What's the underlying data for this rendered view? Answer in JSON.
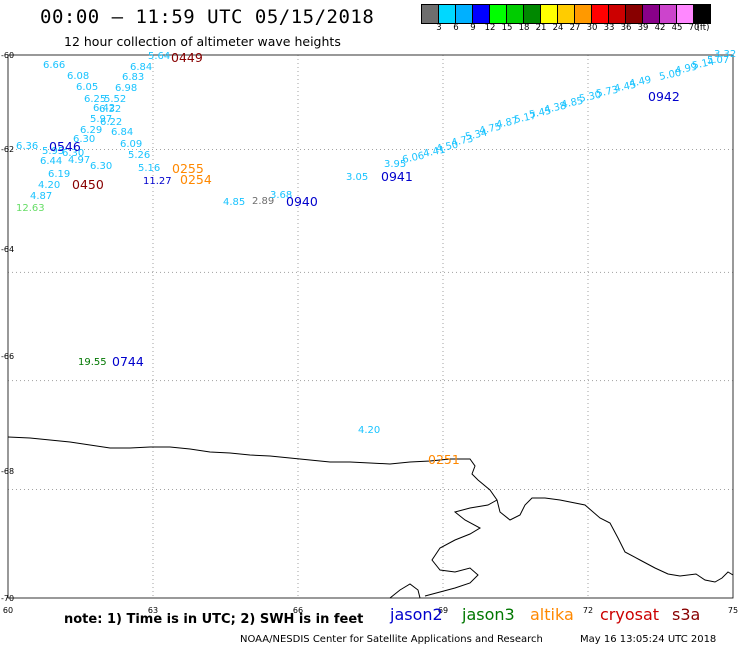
{
  "header": {
    "title": "00:00 – 11:59 UTC 05/15/2018",
    "subtitle": "12 hour collection of altimeter wave heights"
  },
  "colorbar": {
    "colors": [
      "#6e6e6e",
      "#00d8ff",
      "#00b0ff",
      "#0000ff",
      "#00ff00",
      "#00cc00",
      "#008800",
      "#ffff00",
      "#ffcc00",
      "#ff9900",
      "#ff0000",
      "#cc0000",
      "#880000",
      "#880088",
      "#cc44cc",
      "#ff88ff",
      "#000000"
    ],
    "labels": [
      "3",
      "6",
      "9",
      "12",
      "15",
      "18",
      "21",
      "24",
      "27",
      "30",
      "33",
      "36",
      "39",
      "42",
      "45",
      "70",
      "(ft)"
    ]
  },
  "axes": {
    "lon_ticks": [
      "60",
      "63",
      "66",
      "69",
      "72",
      "75"
    ],
    "lat_ticks": [
      "-60",
      "-62",
      "-64",
      "-66",
      "-68",
      "-70"
    ]
  },
  "colors": {
    "jason2": "#0000cc",
    "jason3": "#007700",
    "altika": "#ff8800",
    "cryosat": "#cc0000",
    "s3a": "#880000",
    "wave_light": "#19c3ff",
    "coast": "#000000"
  },
  "waves": [
    {
      "t": "5.64",
      "c": "#19c3ff"
    },
    {
      "t": "6.66",
      "c": "#19c3ff"
    },
    {
      "t": "6.84",
      "c": "#19c3ff"
    },
    {
      "t": "6.08",
      "c": "#19c3ff"
    },
    {
      "t": "6.83",
      "c": "#19c3ff"
    },
    {
      "t": "6.05",
      "c": "#19c3ff"
    },
    {
      "t": "6.98",
      "c": "#19c3ff"
    },
    {
      "t": "6.25",
      "c": "#19c3ff"
    },
    {
      "t": "5.52",
      "c": "#19c3ff"
    },
    {
      "t": "6.42",
      "c": "#19c3ff"
    },
    {
      "t": "6.32",
      "c": "#19c3ff"
    },
    {
      "t": "5.97",
      "c": "#19c3ff"
    },
    {
      "t": "6.22",
      "c": "#19c3ff"
    },
    {
      "t": "6.29",
      "c": "#19c3ff"
    },
    {
      "t": "6.84",
      "c": "#19c3ff"
    },
    {
      "t": "6.30",
      "c": "#19c3ff"
    },
    {
      "t": "6.09",
      "c": "#19c3ff"
    },
    {
      "t": "6.36",
      "c": "#19c3ff"
    },
    {
      "t": "5.95",
      "c": "#19c3ff"
    },
    {
      "t": "6.30",
      "c": "#19c3ff"
    },
    {
      "t": "5.26",
      "c": "#19c3ff"
    },
    {
      "t": "6.44",
      "c": "#19c3ff"
    },
    {
      "t": "4.97",
      "c": "#19c3ff"
    },
    {
      "t": "6.30",
      "c": "#19c3ff"
    },
    {
      "t": "5.16",
      "c": "#19c3ff"
    },
    {
      "t": "6.19",
      "c": "#19c3ff"
    },
    {
      "t": "11.27",
      "c": "#0000cc"
    },
    {
      "t": "4.20",
      "c": "#19c3ff"
    },
    {
      "t": "4.87",
      "c": "#19c3ff"
    },
    {
      "t": "12.63",
      "c": "#66dd66"
    },
    {
      "t": "4.85",
      "c": "#19c3ff"
    },
    {
      "t": "2.89",
      "c": "#6e6e6e"
    },
    {
      "t": "3.68",
      "c": "#19c3ff"
    },
    {
      "t": "3.05",
      "c": "#19c3ff"
    },
    {
      "t": "3.95",
      "c": "#19c3ff"
    },
    {
      "t": "6.06",
      "c": "#19c3ff"
    },
    {
      "t": "4.41",
      "c": "#19c3ff"
    },
    {
      "t": "4.50",
      "c": "#19c3ff"
    },
    {
      "t": "4.73",
      "c": "#19c3ff"
    },
    {
      "t": "5.34",
      "c": "#19c3ff"
    },
    {
      "t": "4.75",
      "c": "#19c3ff"
    },
    {
      "t": "4.87",
      "c": "#19c3ff"
    },
    {
      "t": "5.17",
      "c": "#19c3ff"
    },
    {
      "t": "5.45",
      "c": "#19c3ff"
    },
    {
      "t": "4.38",
      "c": "#19c3ff"
    },
    {
      "t": "4.85",
      "c": "#19c3ff"
    },
    {
      "t": "5.30",
      "c": "#19c3ff"
    },
    {
      "t": "5.73",
      "c": "#19c3ff"
    },
    {
      "t": "4.45",
      "c": "#19c3ff"
    },
    {
      "t": "4.49",
      "c": "#19c3ff"
    },
    {
      "t": "5.00",
      "c": "#19c3ff"
    },
    {
      "t": "4.99",
      "c": "#19c3ff"
    },
    {
      "t": "5.14",
      "c": "#19c3ff"
    },
    {
      "t": "5.07",
      "c": "#19c3ff"
    },
    {
      "t": "3.32",
      "c": "#19c3ff"
    },
    {
      "t": "19.55",
      "c": "#007700"
    },
    {
      "t": "4.20",
      "c": "#19c3ff"
    }
  ],
  "passes": [
    {
      "t": "0449",
      "c": "#880000"
    },
    {
      "t": "0546",
      "c": "#0000cc"
    },
    {
      "t": "0450",
      "c": "#880000"
    },
    {
      "t": "0255",
      "c": "#ff8800"
    },
    {
      "t": "0254",
      "c": "#ff8800"
    },
    {
      "t": "0940",
      "c": "#0000cc"
    },
    {
      "t": "0941",
      "c": "#0000cc"
    },
    {
      "t": "0942",
      "c": "#0000cc"
    },
    {
      "t": "0744",
      "c": "#0000cc"
    },
    {
      "t": "0251",
      "c": "#ff8800"
    }
  ],
  "legend": {
    "note": "note:  1) Time is in UTC;  2) SWH is in feet",
    "missions": [
      {
        "name": "jason2",
        "color": "#0000cc"
      },
      {
        "name": "jason3",
        "color": "#007700"
      },
      {
        "name": "altika",
        "color": "#ff8800"
      },
      {
        "name": "cryosat",
        "color": "#cc0000"
      },
      {
        "name": "s3a",
        "color": "#880000"
      }
    ]
  },
  "footer": {
    "credit": "NOAA/NESDIS Center for Satellite Applications and Research",
    "timestamp": "May 16 13:05:24 UTC 2018"
  }
}
